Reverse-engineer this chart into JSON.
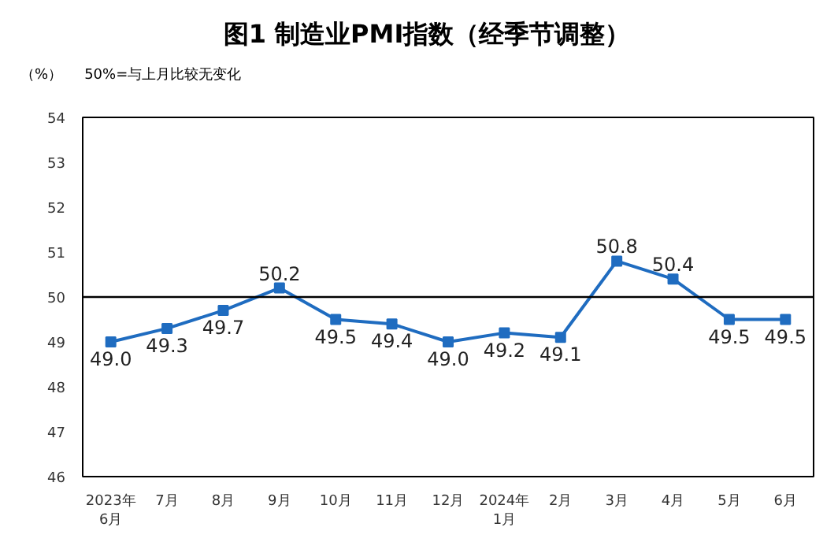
{
  "chart_data": {
    "type": "line",
    "title": "图1  制造业PMI指数（经季节调整）",
    "ylabel": "（%）",
    "annotations": [
      "50%=与上月比较无变化"
    ],
    "categories": [
      "2023年\n6月",
      "7月",
      "8月",
      "9月",
      "10月",
      "11月",
      "12月",
      "2024年\n1月",
      "2月",
      "3月",
      "4月",
      "5月",
      "6月"
    ],
    "series": [
      {
        "color": "#1f6cc0",
        "values": [
          49.0,
          49.3,
          49.7,
          50.2,
          49.5,
          49.4,
          49.0,
          49.2,
          49.1,
          50.8,
          50.4,
          49.5,
          49.5
        ],
        "value_labels": [
          "49.0",
          "49.3",
          "49.7",
          "50.2",
          "49.5",
          "49.4",
          "49.0",
          "49.2",
          "49.1",
          "50.8",
          "50.4",
          "49.5",
          "49.5"
        ]
      }
    ],
    "ylim": [
      46,
      54
    ],
    "yticks": [
      46,
      47,
      48,
      49,
      50,
      51,
      52,
      53,
      54
    ],
    "grid": false,
    "marker": "square",
    "line_style": "solid",
    "ref_lines": [
      {
        "axis": "y",
        "value": 50,
        "color": "#000000"
      }
    ]
  }
}
